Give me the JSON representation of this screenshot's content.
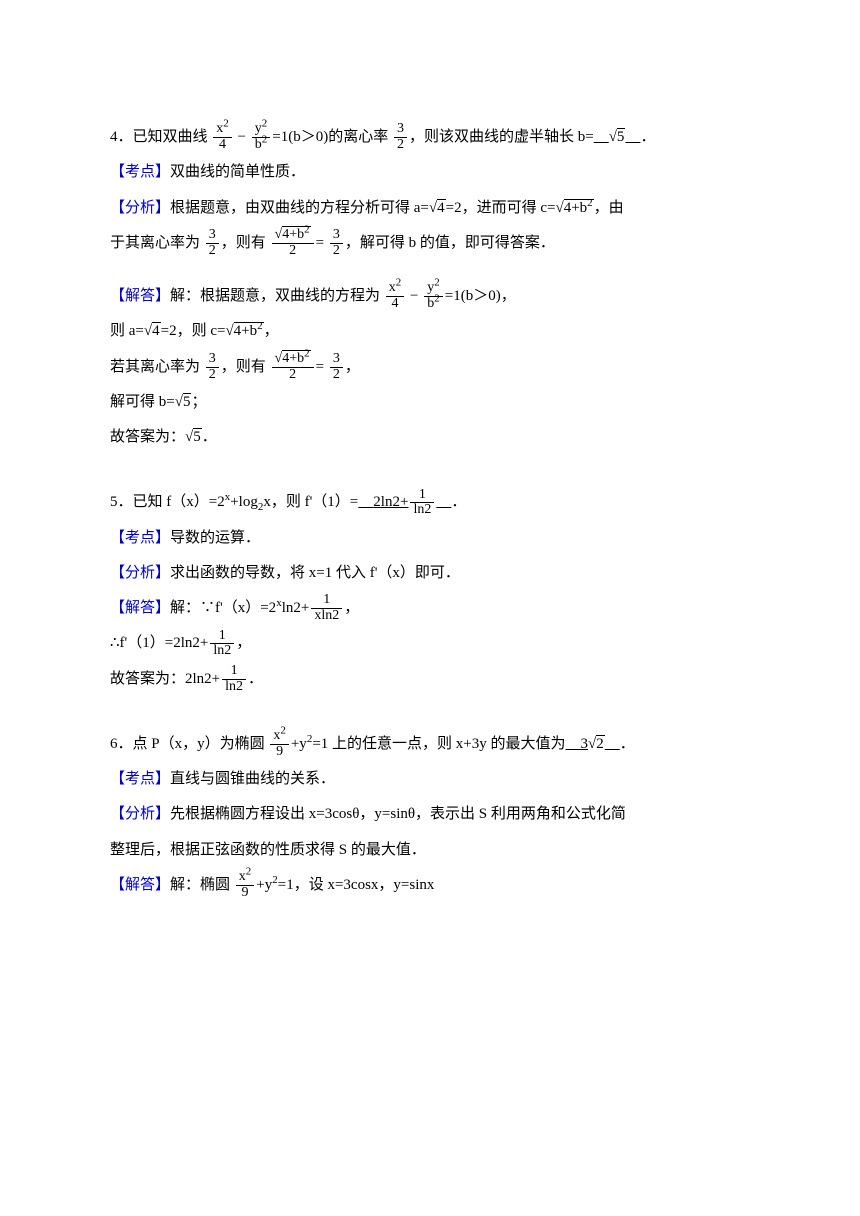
{
  "colors": {
    "text": "#000000",
    "accent": "#0000cc",
    "bg": "#ffffff"
  },
  "fontsize": 15,
  "q4": {
    "num": "4",
    "stem_a": "．已知双曲线",
    "eq1_num1": "x",
    "eq1_den1": "4",
    "eq1_num2": "y",
    "eq1_den2": "b",
    "eq1_tail": "=1(b＞0)",
    "stem_b": "的离心率",
    "ecc_num": "3",
    "ecc_den": "2",
    "stem_c": "，则该双曲线的虚半轴长 b=",
    "ans": "√5",
    "period": "．",
    "kd_label": "【考点】",
    "kd_text": "双曲线的简单性质．",
    "fx_label": "【分析】",
    "fx_a": "根据题意，由双曲线的方程分析可得 a=",
    "fx_a2": "=2，进而可得 c=",
    "fx_a3": "，由",
    "fx_b": "于其离心率为",
    "fx_c": "，则有",
    "fx_eqrhs": "=",
    "fx_d": "，解可得 b 的值，即可得答案．",
    "jd_label": "【解答】",
    "jd_a": "解：根据题意，双曲线的方程为",
    "jd_a2": "=1(b＞0)，",
    "jd_b": "则 a=",
    "jd_b2": "=2，则 c=",
    "jd_b3": "，",
    "jd_c": "若其离心率为",
    "jd_c2": "，则有",
    "jd_c3": "，",
    "jd_d": "解可得 b=",
    "jd_d2": "；",
    "jd_e": "故答案为：",
    "jd_e2": "．",
    "root4": "4",
    "root4b2": "4+b",
    "root5": "5"
  },
  "q5": {
    "num": "5",
    "stem_a": "．已知 f（x）=2",
    "stem_a2": "+log",
    "stem_a3": "x，则 f'（1）=",
    "ans_a": "2ln2+",
    "ans_num": "1",
    "ans_den": "ln2",
    "period": "．",
    "kd_label": "【考点】",
    "kd_text": "导数的运算．",
    "fx_label": "【分析】",
    "fx_text": "求出函数的导数，将 x=1 代入 f'（x）即可．",
    "jd_label": "【解答】",
    "jd_a": "解：∵f'（x）=2",
    "jd_a2": "ln2+",
    "jd_frac_num": "1",
    "jd_frac_den": "xln2",
    "jd_a3": "，",
    "jd_b": "∴f'（1）=2ln2+",
    "jd_b_num": "1",
    "jd_b_den": "ln2",
    "jd_b2": "，",
    "jd_c": "故答案为：2ln2+",
    "jd_c2": "．"
  },
  "q6": {
    "num": "6",
    "stem_a": "．点 P（x，y）为椭圆",
    "eq_num": "x",
    "eq_den": "9",
    "stem_b": "+y",
    "stem_c": "=1 上的任意一点，则 x+3y 的最大值为",
    "ans": "3√2",
    "period": "．",
    "kd_label": "【考点】",
    "kd_text": "直线与圆锥曲线的关系．",
    "fx_label": "【分析】",
    "fx_a": "先根据椭圆方程设出 x=3cosθ，y=sinθ，表示出 S 利用两角和公式化简",
    "fx_b": "整理后，根据正弦函数的性质求得 S 的最大值．",
    "jd_label": "【解答】",
    "jd_a": "解：椭圆",
    "jd_b": "+y",
    "jd_c": "=1，设 x=3cosx，y=sinx"
  }
}
